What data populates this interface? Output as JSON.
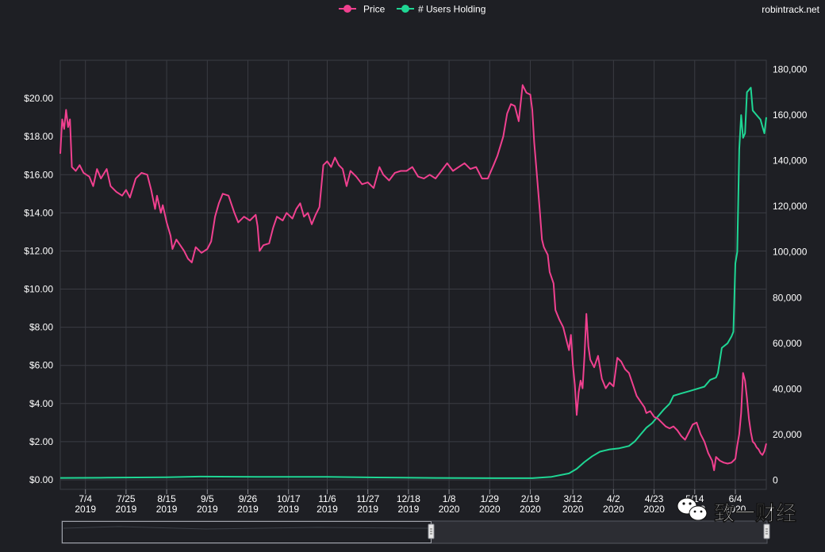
{
  "site": "robintrack.net",
  "watermark": "致一财经",
  "colors": {
    "background": "#1e1f24",
    "grid": "#3a3c43",
    "price": "#f0408f",
    "users": "#1fd694",
    "text": "#ffffff"
  },
  "chart_data": {
    "type": "line",
    "title": "",
    "legend_position": "top-center",
    "grid": true,
    "x_range": [
      "2019-06-21",
      "2020-06-20"
    ],
    "x_ticks": [
      {
        "date": "2019-07-04",
        "line1": "7/4",
        "line2": "2019"
      },
      {
        "date": "2019-07-25",
        "line1": "7/25",
        "line2": "2019"
      },
      {
        "date": "2019-08-15",
        "line1": "8/15",
        "line2": "2019"
      },
      {
        "date": "2019-09-05",
        "line1": "9/5",
        "line2": "2019"
      },
      {
        "date": "2019-09-26",
        "line1": "9/26",
        "line2": "2019"
      },
      {
        "date": "2019-10-17",
        "line1": "10/17",
        "line2": "2019"
      },
      {
        "date": "2019-11-06",
        "line1": "11/6",
        "line2": "2019"
      },
      {
        "date": "2019-11-27",
        "line1": "11/27",
        "line2": "2019"
      },
      {
        "date": "2019-12-18",
        "line1": "12/18",
        "line2": "2019"
      },
      {
        "date": "2020-01-08",
        "line1": "1/8",
        "line2": "2020"
      },
      {
        "date": "2020-01-29",
        "line1": "1/29",
        "line2": "2020"
      },
      {
        "date": "2020-02-19",
        "line1": "2/19",
        "line2": "2020"
      },
      {
        "date": "2020-03-12",
        "line1": "3/12",
        "line2": "2020"
      },
      {
        "date": "2020-04-02",
        "line1": "4/2",
        "line2": "2020"
      },
      {
        "date": "2020-04-23",
        "line1": "4/23",
        "line2": "2020"
      },
      {
        "date": "2020-05-14",
        "line1": "5/14",
        "line2": "2020"
      },
      {
        "date": "2020-06-04",
        "line1": "6/4",
        "line2": "2020"
      }
    ],
    "y_left": {
      "range": [
        -0.5,
        22
      ],
      "ticks": [
        0,
        2,
        4,
        6,
        8,
        10,
        12,
        14,
        16,
        18,
        20
      ],
      "tick_labels": [
        "$0.00",
        "$2.00",
        "$4.00",
        "$6.00",
        "$8.00",
        "$10.00",
        "$12.00",
        "$14.00",
        "$16.00",
        "$18.00",
        "$20.00"
      ]
    },
    "y_right": {
      "range": [
        -4000,
        184000
      ],
      "ticks": [
        0,
        20000,
        40000,
        60000,
        80000,
        100000,
        120000,
        140000,
        160000,
        180000
      ],
      "tick_labels": [
        "0",
        "20,000",
        "40,000",
        "60,000",
        "80,000",
        "100,000",
        "120,000",
        "140,000",
        "160,000",
        "180,000"
      ]
    },
    "series": [
      {
        "name": "Price",
        "axis": "left",
        "points": [
          [
            "2019-06-21",
            17.1
          ],
          [
            "2019-06-22",
            18.9
          ],
          [
            "2019-06-23",
            18.4
          ],
          [
            "2019-06-24",
            19.4
          ],
          [
            "2019-06-25",
            18.5
          ],
          [
            "2019-06-26",
            18.9
          ],
          [
            "2019-06-27",
            16.4
          ],
          [
            "2019-06-29",
            16.2
          ],
          [
            "2019-07-01",
            16.5
          ],
          [
            "2019-07-03",
            16.1
          ],
          [
            "2019-07-06",
            15.9
          ],
          [
            "2019-07-08",
            15.4
          ],
          [
            "2019-07-10",
            16.3
          ],
          [
            "2019-07-12",
            15.8
          ],
          [
            "2019-07-15",
            16.3
          ],
          [
            "2019-07-17",
            15.4
          ],
          [
            "2019-07-20",
            15.1
          ],
          [
            "2019-07-23",
            14.9
          ],
          [
            "2019-07-25",
            15.2
          ],
          [
            "2019-07-27",
            14.8
          ],
          [
            "2019-07-30",
            15.8
          ],
          [
            "2019-08-02",
            16.1
          ],
          [
            "2019-08-05",
            16.0
          ],
          [
            "2019-08-07",
            15.2
          ],
          [
            "2019-08-09",
            14.2
          ],
          [
            "2019-08-10",
            14.9
          ],
          [
            "2019-08-12",
            14.0
          ],
          [
            "2019-08-13",
            14.4
          ],
          [
            "2019-08-15",
            13.5
          ],
          [
            "2019-08-17",
            12.8
          ],
          [
            "2019-08-18",
            12.1
          ],
          [
            "2019-08-20",
            12.6
          ],
          [
            "2019-08-22",
            12.3
          ],
          [
            "2019-08-24",
            12.0
          ],
          [
            "2019-08-26",
            11.6
          ],
          [
            "2019-08-28",
            11.4
          ],
          [
            "2019-08-30",
            12.2
          ],
          [
            "2019-09-02",
            11.9
          ],
          [
            "2019-09-05",
            12.1
          ],
          [
            "2019-09-07",
            12.5
          ],
          [
            "2019-09-09",
            13.8
          ],
          [
            "2019-09-11",
            14.5
          ],
          [
            "2019-09-13",
            15.0
          ],
          [
            "2019-09-16",
            14.9
          ],
          [
            "2019-09-19",
            14.0
          ],
          [
            "2019-09-21",
            13.5
          ],
          [
            "2019-09-24",
            13.8
          ],
          [
            "2019-09-27",
            13.6
          ],
          [
            "2019-09-30",
            13.9
          ],
          [
            "2019-10-01",
            13.3
          ],
          [
            "2019-10-02",
            12.0
          ],
          [
            "2019-10-04",
            12.3
          ],
          [
            "2019-10-07",
            12.4
          ],
          [
            "2019-10-09",
            13.2
          ],
          [
            "2019-10-11",
            13.8
          ],
          [
            "2019-10-14",
            13.6
          ],
          [
            "2019-10-16",
            14.0
          ],
          [
            "2019-10-19",
            13.7
          ],
          [
            "2019-10-21",
            14.2
          ],
          [
            "2019-10-23",
            14.5
          ],
          [
            "2019-10-25",
            13.8
          ],
          [
            "2019-10-27",
            14.0
          ],
          [
            "2019-10-29",
            13.4
          ],
          [
            "2019-10-31",
            13.9
          ],
          [
            "2019-11-02",
            14.3
          ],
          [
            "2019-11-04",
            16.5
          ],
          [
            "2019-11-06",
            16.7
          ],
          [
            "2019-11-08",
            16.4
          ],
          [
            "2019-11-10",
            16.9
          ],
          [
            "2019-11-12",
            16.5
          ],
          [
            "2019-11-14",
            16.3
          ],
          [
            "2019-11-16",
            15.4
          ],
          [
            "2019-11-18",
            16.2
          ],
          [
            "2019-11-21",
            15.9
          ],
          [
            "2019-11-24",
            15.5
          ],
          [
            "2019-11-27",
            15.6
          ],
          [
            "2019-11-30",
            15.3
          ],
          [
            "2019-12-03",
            16.4
          ],
          [
            "2019-12-05",
            16.0
          ],
          [
            "2019-12-08",
            15.7
          ],
          [
            "2019-12-11",
            16.1
          ],
          [
            "2019-12-14",
            16.2
          ],
          [
            "2019-12-17",
            16.2
          ],
          [
            "2019-12-20",
            16.4
          ],
          [
            "2019-12-23",
            15.9
          ],
          [
            "2019-12-26",
            15.8
          ],
          [
            "2019-12-29",
            16.0
          ],
          [
            "2020-01-01",
            15.8
          ],
          [
            "2020-01-04",
            16.2
          ],
          [
            "2020-01-07",
            16.6
          ],
          [
            "2020-01-10",
            16.2
          ],
          [
            "2020-01-13",
            16.4
          ],
          [
            "2020-01-16",
            16.6
          ],
          [
            "2020-01-19",
            16.3
          ],
          [
            "2020-01-22",
            16.4
          ],
          [
            "2020-01-25",
            15.8
          ],
          [
            "2020-01-28",
            15.8
          ],
          [
            "2020-01-31",
            16.5
          ],
          [
            "2020-02-02",
            17.0
          ],
          [
            "2020-02-05",
            18.0
          ],
          [
            "2020-02-07",
            19.2
          ],
          [
            "2020-02-09",
            19.7
          ],
          [
            "2020-02-11",
            19.6
          ],
          [
            "2020-02-13",
            18.8
          ],
          [
            "2020-02-15",
            20.7
          ],
          [
            "2020-02-17",
            20.3
          ],
          [
            "2020-02-19",
            20.2
          ],
          [
            "2020-02-20",
            19.4
          ],
          [
            "2020-02-21",
            17.7
          ],
          [
            "2020-02-22",
            16.5
          ],
          [
            "2020-02-24",
            14.0
          ],
          [
            "2020-02-25",
            12.6
          ],
          [
            "2020-02-26",
            12.2
          ],
          [
            "2020-02-27",
            12.0
          ],
          [
            "2020-02-28",
            11.8
          ],
          [
            "2020-02-29",
            10.9
          ],
          [
            "2020-03-02",
            10.3
          ],
          [
            "2020-03-03",
            8.9
          ],
          [
            "2020-03-05",
            8.4
          ],
          [
            "2020-03-07",
            8.0
          ],
          [
            "2020-03-09",
            7.2
          ],
          [
            "2020-03-10",
            6.8
          ],
          [
            "2020-03-11",
            7.6
          ],
          [
            "2020-03-12",
            6.0
          ],
          [
            "2020-03-13",
            5.0
          ],
          [
            "2020-03-14",
            3.4
          ],
          [
            "2020-03-15",
            4.6
          ],
          [
            "2020-03-16",
            5.2
          ],
          [
            "2020-03-17",
            4.8
          ],
          [
            "2020-03-18",
            6.5
          ],
          [
            "2020-03-19",
            8.7
          ],
          [
            "2020-03-20",
            7.0
          ],
          [
            "2020-03-21",
            6.3
          ],
          [
            "2020-03-23",
            5.9
          ],
          [
            "2020-03-25",
            6.5
          ],
          [
            "2020-03-27",
            5.3
          ],
          [
            "2020-03-29",
            4.8
          ],
          [
            "2020-03-31",
            5.1
          ],
          [
            "2020-04-02",
            4.9
          ],
          [
            "2020-04-04",
            6.4
          ],
          [
            "2020-04-06",
            6.2
          ],
          [
            "2020-04-08",
            5.8
          ],
          [
            "2020-04-10",
            5.6
          ],
          [
            "2020-04-12",
            5.0
          ],
          [
            "2020-04-14",
            4.4
          ],
          [
            "2020-04-16",
            4.1
          ],
          [
            "2020-04-18",
            3.8
          ],
          [
            "2020-04-19",
            3.5
          ],
          [
            "2020-04-21",
            3.6
          ],
          [
            "2020-04-23",
            3.3
          ],
          [
            "2020-04-25",
            3.2
          ],
          [
            "2020-04-27",
            3.0
          ],
          [
            "2020-04-29",
            2.8
          ],
          [
            "2020-05-01",
            2.7
          ],
          [
            "2020-05-03",
            2.8
          ],
          [
            "2020-05-05",
            2.6
          ],
          [
            "2020-05-07",
            2.3
          ],
          [
            "2020-05-09",
            2.1
          ],
          [
            "2020-05-11",
            2.5
          ],
          [
            "2020-05-13",
            2.9
          ],
          [
            "2020-05-15",
            3.0
          ],
          [
            "2020-05-17",
            2.4
          ],
          [
            "2020-05-19",
            2.0
          ],
          [
            "2020-05-21",
            1.4
          ],
          [
            "2020-05-23",
            1.0
          ],
          [
            "2020-05-24",
            0.5
          ],
          [
            "2020-05-25",
            1.2
          ],
          [
            "2020-05-27",
            1.0
          ],
          [
            "2020-05-29",
            0.9
          ],
          [
            "2020-05-31",
            0.85
          ],
          [
            "2020-06-02",
            0.9
          ],
          [
            "2020-06-04",
            1.1
          ],
          [
            "2020-06-05",
            1.8
          ],
          [
            "2020-06-06",
            2.4
          ],
          [
            "2020-06-07",
            3.5
          ],
          [
            "2020-06-08",
            5.6
          ],
          [
            "2020-06-09",
            5.2
          ],
          [
            "2020-06-10",
            4.3
          ],
          [
            "2020-06-11",
            3.2
          ],
          [
            "2020-06-12",
            2.5
          ],
          [
            "2020-06-13",
            2.0
          ],
          [
            "2020-06-14",
            1.9
          ],
          [
            "2020-06-15",
            1.7
          ],
          [
            "2020-06-16",
            1.6
          ],
          [
            "2020-06-17",
            1.4
          ],
          [
            "2020-06-18",
            1.3
          ],
          [
            "2020-06-19",
            1.5
          ],
          [
            "2020-06-20",
            1.9
          ]
        ]
      },
      {
        "name": "# Users Holding",
        "axis": "right",
        "points": [
          [
            "2019-06-21",
            1000
          ],
          [
            "2019-07-15",
            1100
          ],
          [
            "2019-08-15",
            1300
          ],
          [
            "2019-09-01",
            1600
          ],
          [
            "2019-10-01",
            1500
          ],
          [
            "2019-11-06",
            1500
          ],
          [
            "2019-12-01",
            1200
          ],
          [
            "2020-01-01",
            1000
          ],
          [
            "2020-02-01",
            900
          ],
          [
            "2020-02-20",
            900
          ],
          [
            "2020-03-01",
            1500
          ],
          [
            "2020-03-10",
            3000
          ],
          [
            "2020-03-14",
            5000
          ],
          [
            "2020-03-18",
            8000
          ],
          [
            "2020-03-22",
            10500
          ],
          [
            "2020-03-26",
            12500
          ],
          [
            "2020-03-31",
            13500
          ],
          [
            "2020-04-05",
            14000
          ],
          [
            "2020-04-10",
            15000
          ],
          [
            "2020-04-13",
            17000
          ],
          [
            "2020-04-16",
            20000
          ],
          [
            "2020-04-19",
            23000
          ],
          [
            "2020-04-22",
            25000
          ],
          [
            "2020-04-25",
            28000
          ],
          [
            "2020-04-28",
            31000
          ],
          [
            "2020-05-01",
            33500
          ],
          [
            "2020-05-03",
            37000
          ],
          [
            "2020-05-07",
            38000
          ],
          [
            "2020-05-11",
            39000
          ],
          [
            "2020-05-15",
            40000
          ],
          [
            "2020-05-19",
            41000
          ],
          [
            "2020-05-22",
            44000
          ],
          [
            "2020-05-25",
            45000
          ],
          [
            "2020-05-26",
            47000
          ],
          [
            "2020-05-28",
            58000
          ],
          [
            "2020-05-31",
            60000
          ],
          [
            "2020-06-02",
            63000
          ],
          [
            "2020-06-03",
            65000
          ],
          [
            "2020-06-04",
            95000
          ],
          [
            "2020-06-05",
            100000
          ],
          [
            "2020-06-06",
            145000
          ],
          [
            "2020-06-07",
            160000
          ],
          [
            "2020-06-08",
            150000
          ],
          [
            "2020-06-09",
            152000
          ],
          [
            "2020-06-10",
            170000
          ],
          [
            "2020-06-12",
            172000
          ],
          [
            "2020-06-13",
            162000
          ],
          [
            "2020-06-15",
            160000
          ],
          [
            "2020-06-17",
            158000
          ],
          [
            "2020-06-18",
            155000
          ],
          [
            "2020-06-19",
            152000
          ],
          [
            "2020-06-20",
            159000
          ]
        ]
      }
    ]
  }
}
